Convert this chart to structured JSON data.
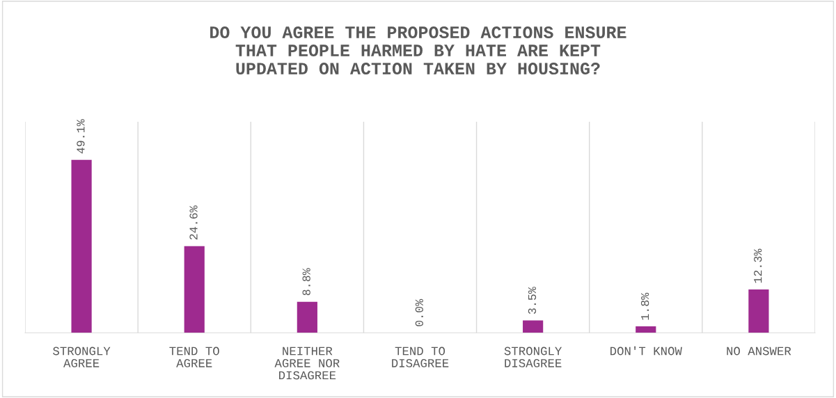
{
  "chart_data": {
    "type": "bar",
    "title": "DO YOU AGREE THE PROPOSED ACTIONS ENSURE THAT PEOPLE HARMED BY HATE ARE KEPT UPDATED ON ACTION TAKEN BY HOUSING?",
    "categories": [
      "STRONGLY AGREE",
      "TEND TO AGREE",
      "NEITHER AGREE NOR DISAGREE",
      "TEND TO DISAGREE",
      "STRONGLY DISAGREE",
      "DON'T KNOW",
      "NO ANSWER"
    ],
    "values": [
      49.1,
      24.6,
      8.8,
      0.0,
      3.5,
      1.8,
      12.3
    ],
    "value_labels": [
      "49.1%",
      "24.6%",
      "8.8%",
      "0.0%",
      "3.5%",
      "1.8%",
      "12.3%"
    ],
    "color": "#9e2a8f",
    "grid": "x",
    "tick_labels": "x"
  }
}
